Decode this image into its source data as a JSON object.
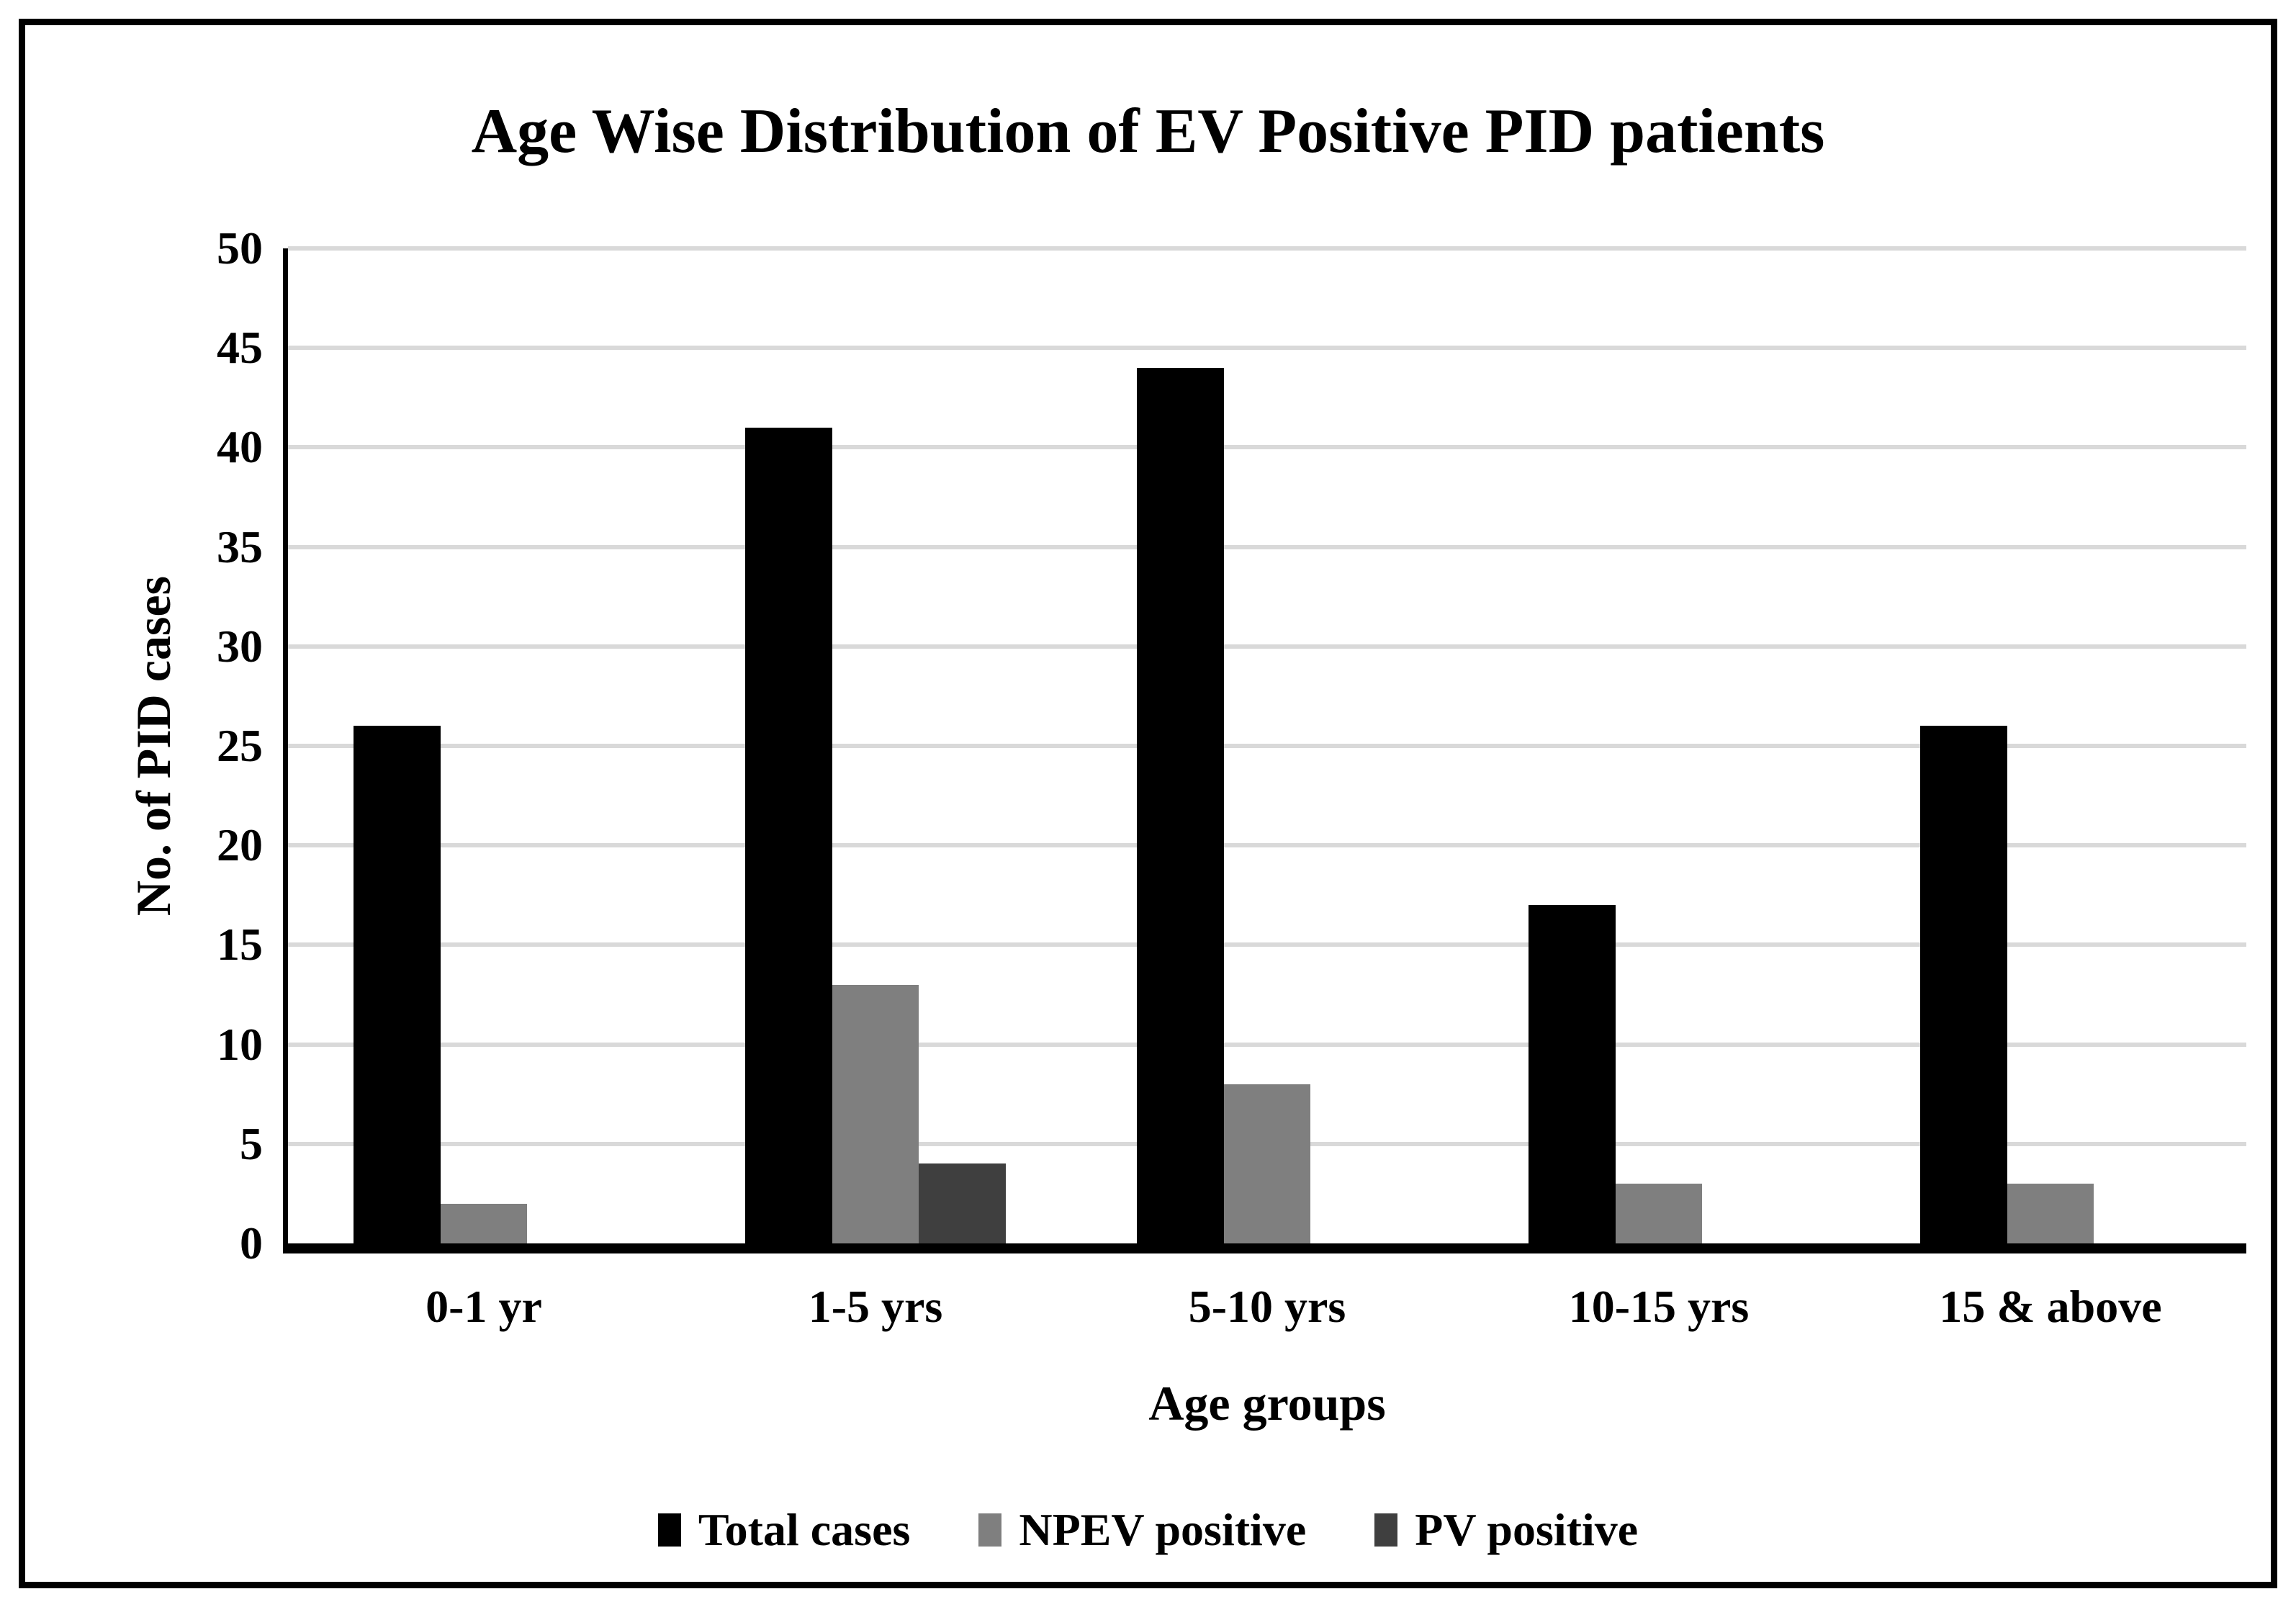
{
  "figure": {
    "background_color": "#ffffff",
    "border_color": "#000000",
    "text_color": "#000000"
  },
  "chart_data": {
    "type": "bar",
    "title": "Age Wise Distribution of EV Positive PID patients",
    "xlabel": "Age groups",
    "ylabel": "No. of PID cases",
    "categories": [
      "0-1 yr",
      "1-5 yrs",
      "5-10 yrs",
      "10-15 yrs",
      "15 & above"
    ],
    "series": [
      {
        "name": "Total cases",
        "color": "#000000",
        "values": [
          26,
          41,
          44,
          17,
          26
        ]
      },
      {
        "name": "NPEV positive",
        "color": "#7F7F7F",
        "values": [
          2,
          13,
          8,
          3,
          3
        ]
      },
      {
        "name": "PV positive",
        "color": "#3F3F3F",
        "values": [
          0,
          4,
          0,
          0,
          0
        ]
      }
    ],
    "ylim": [
      0,
      50
    ],
    "yticks": [
      0,
      5,
      10,
      15,
      20,
      25,
      30,
      35,
      40,
      45,
      50
    ],
    "grid": "horizontal",
    "gridline_color": "#D9D9D9",
    "legend_position": "bottom"
  }
}
